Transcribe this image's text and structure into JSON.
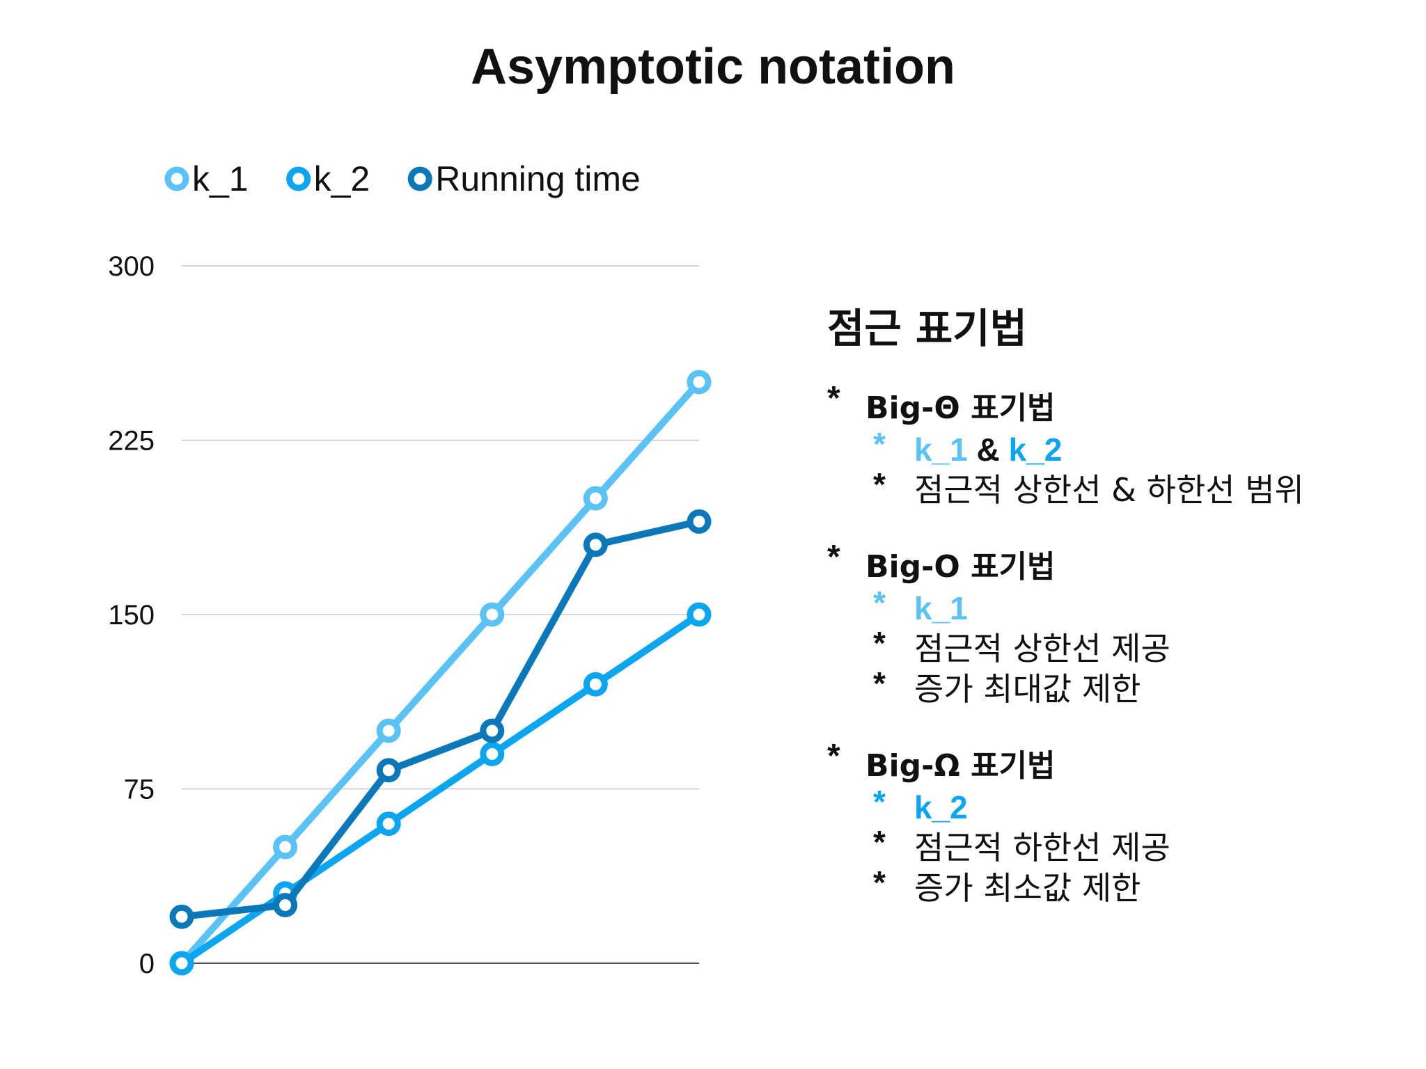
{
  "colors": {
    "k1": "#5bc2f5",
    "k2": "#0ba6ef",
    "running": "#0a78b9",
    "grid": "#c8c8c8",
    "baseline": "#555555",
    "text": "#111111"
  },
  "chart_data": {
    "type": "line",
    "title": "Asymptotic notation",
    "xlabel": "",
    "ylabel": "",
    "x": [
      1,
      2,
      3,
      4,
      5,
      6
    ],
    "ylim": [
      0,
      300
    ],
    "yticks": [
      "0",
      "75",
      "150",
      "225",
      "300"
    ],
    "grid": true,
    "legend": "top-left",
    "series": [
      {
        "name": "k_1",
        "color": "#5bc2f5",
        "values": [
          0,
          50,
          100,
          150,
          200,
          250
        ]
      },
      {
        "name": "k_2",
        "color": "#0ba6ef",
        "values": [
          0,
          30,
          60,
          90,
          120,
          150
        ]
      },
      {
        "name": "Running time",
        "color": "#0a78b9",
        "values": [
          20,
          25,
          83,
          100,
          180,
          190
        ]
      }
    ]
  },
  "notes": {
    "heading": "점근 표기법",
    "sections": [
      {
        "star": "*",
        "title": "Big-Θ 표기법",
        "items": [
          {
            "star": "*",
            "parts": [
              {
                "text": "k_1",
                "style": "k1"
              },
              {
                "text": " & ",
                "style": "bold"
              },
              {
                "text": "k_2",
                "style": "k2"
              }
            ]
          },
          {
            "star": "*",
            "parts": [
              {
                "text": "점근적 상한선 & 하한선 범위",
                "style": "plain"
              }
            ]
          }
        ]
      },
      {
        "star": "*",
        "title": "Big-O 표기법",
        "items": [
          {
            "star": "*",
            "parts": [
              {
                "text": "k_1",
                "style": "k1"
              }
            ]
          },
          {
            "star": "*",
            "parts": [
              {
                "text": "점근적 상한선 제공",
                "style": "plain"
              }
            ]
          },
          {
            "star": "*",
            "parts": [
              {
                "text": "증가 최대값 제한",
                "style": "plain"
              }
            ]
          }
        ]
      },
      {
        "star": "*",
        "title": "Big-Ω 표기법",
        "items": [
          {
            "star": "*",
            "parts": [
              {
                "text": "k_2",
                "style": "k2"
              }
            ]
          },
          {
            "star": "*",
            "parts": [
              {
                "text": "점근적 하한선 제공",
                "style": "plain"
              }
            ]
          },
          {
            "star": "*",
            "parts": [
              {
                "text": "증가 최소값 제한",
                "style": "plain"
              }
            ]
          }
        ]
      }
    ]
  }
}
